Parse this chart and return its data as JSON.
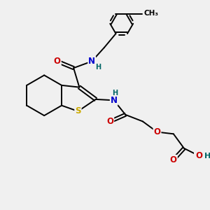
{
  "background_color": "#f0f0f0",
  "figsize": [
    3.0,
    3.0
  ],
  "dpi": 100,
  "atom_colors": {
    "C": "#000000",
    "N": "#0000cc",
    "O": "#cc0000",
    "S": "#ccaa00",
    "H": "#006666"
  },
  "bond_color": "#000000",
  "bond_lw": 1.4,
  "font_size": 8.5,
  "font_size_h": 7.0
}
